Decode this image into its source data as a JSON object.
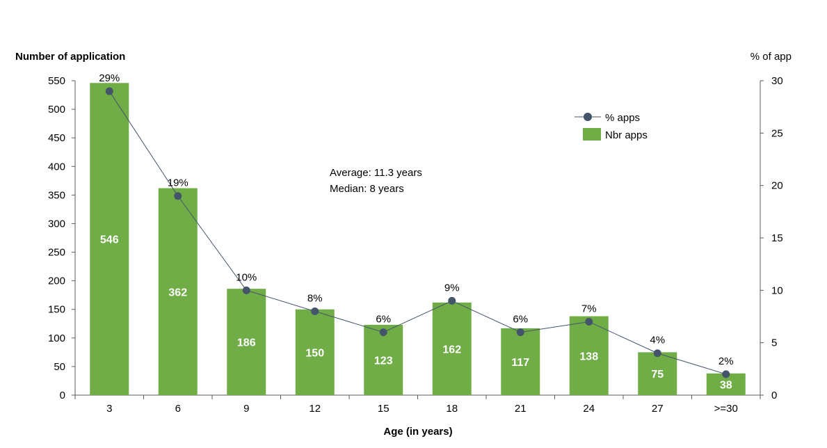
{
  "chart_data": {
    "type": "bar",
    "title": "",
    "xlabel": "Age (in years)",
    "ylabel": "Number of application",
    "y2label": "% of app",
    "categories": [
      "3",
      "6",
      "9",
      "12",
      "15",
      "18",
      "21",
      "24",
      "27",
      ">=30"
    ],
    "ylim": [
      0,
      550
    ],
    "yticks": [
      "0",
      "50",
      "100",
      "150",
      "200",
      "250",
      "300",
      "350",
      "400",
      "450",
      "500",
      "550"
    ],
    "y2lim": [
      0,
      30
    ],
    "y2ticks": [
      "0",
      "5",
      "10",
      "15",
      "20",
      "25",
      "30"
    ],
    "series": [
      {
        "name": "Nbr apps",
        "kind": "bar",
        "axis": "left",
        "color": "#70ad47",
        "values": [
          546,
          362,
          186,
          150,
          123,
          162,
          117,
          138,
          75,
          38
        ],
        "labels": [
          "546",
          "362",
          "186",
          "150",
          "123",
          "162",
          "117",
          "138",
          "75",
          "38"
        ]
      },
      {
        "name": "% apps",
        "kind": "line",
        "axis": "right",
        "color": "#44546a",
        "values": [
          29,
          19,
          10,
          8,
          6,
          9,
          6,
          7,
          4,
          2
        ],
        "labels": [
          "29%",
          "19%",
          "10%",
          "8%",
          "6%",
          "9%",
          "6%",
          "7%",
          "4%",
          "2%"
        ]
      }
    ],
    "annotations": [
      "Average: 11.3 years",
      "Median: 8 years"
    ],
    "legend": {
      "position": "top-right",
      "items": [
        "% apps",
        "Nbr apps"
      ]
    },
    "grid": false
  }
}
